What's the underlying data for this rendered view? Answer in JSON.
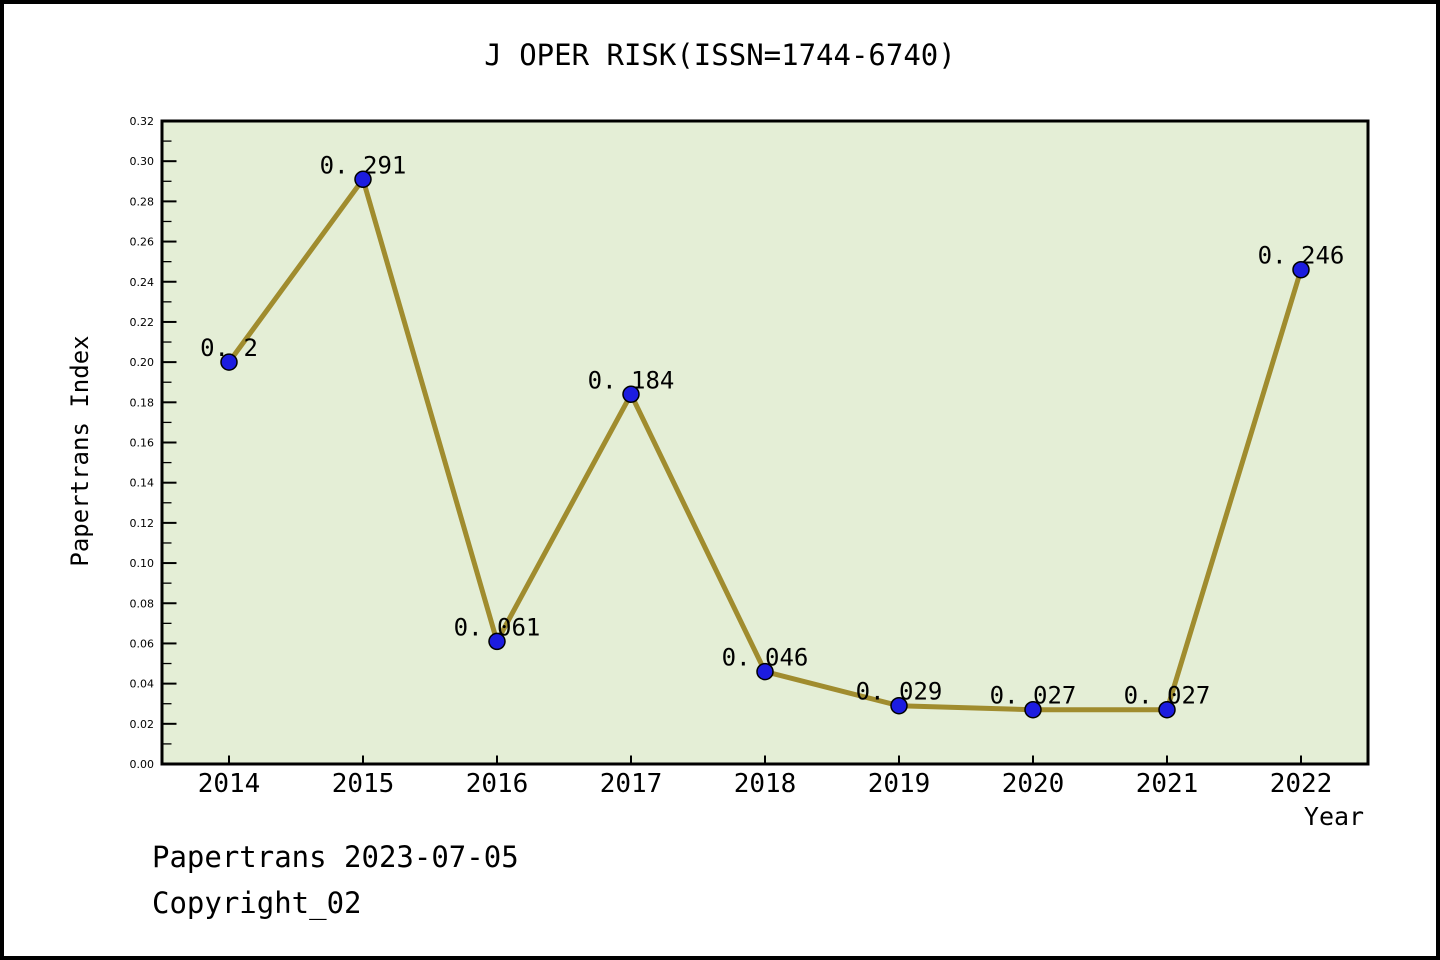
{
  "chart_data": {
    "type": "line",
    "title": "J OPER RISK(ISSN=1744-6740)",
    "xlabel": "Year",
    "ylabel": "Papertrans Index",
    "categories": [
      2014,
      2015,
      2016,
      2017,
      2018,
      2019,
      2020,
      2021,
      2022
    ],
    "values": [
      0.2,
      0.291,
      0.061,
      0.184,
      0.046,
      0.029,
      0.027,
      0.027,
      0.246
    ],
    "value_labels": [
      "0. 2",
      "0. 291",
      "0. 061",
      "0. 184",
      "0. 046",
      "0. 029",
      "0. 027",
      "0. 027",
      "0. 246"
    ],
    "ylim": [
      0,
      0.32
    ],
    "ytick_step": 0.02,
    "yminor_step": 0.01,
    "ytick_decimals": 2,
    "x_padding": 0.5,
    "grid": false,
    "legend_position": null,
    "colors": {
      "plot_background": "#e4eed6",
      "line": "#a08c2e",
      "marker_fill": "#1c1ce0",
      "marker_edge": "#000000",
      "axis": "#000000",
      "text": "#000000"
    }
  },
  "footer": {
    "line1": "Papertrans 2023-07-05",
    "line2": "Copyright_02"
  }
}
